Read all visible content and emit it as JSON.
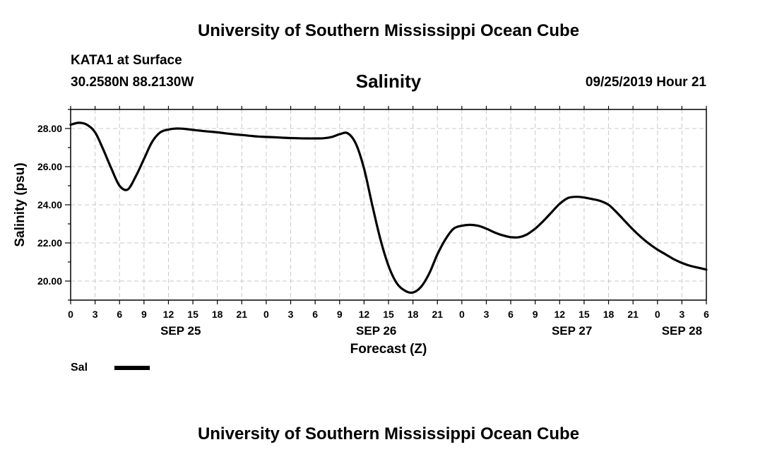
{
  "header": {
    "title": "University of Southern Mississippi Ocean Cube",
    "station": "KATA1 at Surface",
    "coords": "30.2580N 88.2130W",
    "timestamp": "09/25/2019 Hour 21"
  },
  "footer": {
    "title": "University of Southern Mississippi Ocean Cube"
  },
  "chart_data": {
    "type": "line",
    "title": "Salinity",
    "xlabel": "Forecast (Z)",
    "ylabel": "Salinity (psu)",
    "xlim": [
      0,
      78
    ],
    "ylim": [
      19.0,
      29.0
    ],
    "grid": true,
    "y_ticks": [
      "20.00",
      "22.00",
      "24.00",
      "26.00",
      "28.00"
    ],
    "x_tick_labels": [
      "0",
      "3",
      "6",
      "9",
      "12",
      "15",
      "18",
      "21",
      "0",
      "3",
      "6",
      "9",
      "12",
      "15",
      "18",
      "21",
      "0",
      "3",
      "6",
      "9",
      "12",
      "15",
      "18",
      "21",
      "0",
      "3",
      "6"
    ],
    "date_labels": [
      {
        "label": "SEP 25",
        "hour": 13.5
      },
      {
        "label": "SEP 26",
        "hour": 37.5
      },
      {
        "label": "SEP 27",
        "hour": 61.5
      },
      {
        "label": "SEP 28",
        "hour": 75.0
      }
    ],
    "legend": {
      "position": "bottom-left",
      "entries": [
        "Sal"
      ]
    },
    "series": [
      {
        "name": "Sal",
        "color": "#000000",
        "x": [
          0,
          1,
          2,
          3,
          4,
          5,
          6,
          7,
          8,
          9,
          10,
          11,
          12,
          13,
          14,
          15,
          16,
          17,
          18,
          19,
          20,
          21,
          22,
          23,
          24,
          25,
          26,
          27,
          28,
          29,
          30,
          31,
          32,
          33,
          34,
          35,
          36,
          37,
          38,
          39,
          40,
          41,
          42,
          43,
          44,
          45,
          46,
          47,
          48,
          49,
          50,
          51,
          52,
          53,
          54,
          55,
          56,
          57,
          58,
          59,
          60,
          61,
          62,
          63,
          64,
          65,
          66,
          67,
          68,
          69,
          70,
          71,
          72,
          73,
          74,
          75,
          76,
          77,
          78
        ],
        "values": [
          28.2,
          28.3,
          28.2,
          27.8,
          26.9,
          25.9,
          25.0,
          24.8,
          25.5,
          26.4,
          27.3,
          27.8,
          27.95,
          28.0,
          27.98,
          27.93,
          27.88,
          27.84,
          27.8,
          27.75,
          27.7,
          27.66,
          27.62,
          27.58,
          27.56,
          27.54,
          27.52,
          27.5,
          27.49,
          27.48,
          27.48,
          27.49,
          27.55,
          27.7,
          27.75,
          27.2,
          25.9,
          24.0,
          22.2,
          20.8,
          19.9,
          19.5,
          19.4,
          19.7,
          20.4,
          21.4,
          22.2,
          22.75,
          22.9,
          22.95,
          22.9,
          22.75,
          22.55,
          22.4,
          22.3,
          22.3,
          22.45,
          22.75,
          23.15,
          23.6,
          24.05,
          24.35,
          24.42,
          24.38,
          24.3,
          24.2,
          24.0,
          23.6,
          23.15,
          22.7,
          22.3,
          21.95,
          21.65,
          21.4,
          21.15,
          20.95,
          20.8,
          20.7,
          20.6
        ]
      }
    ]
  }
}
